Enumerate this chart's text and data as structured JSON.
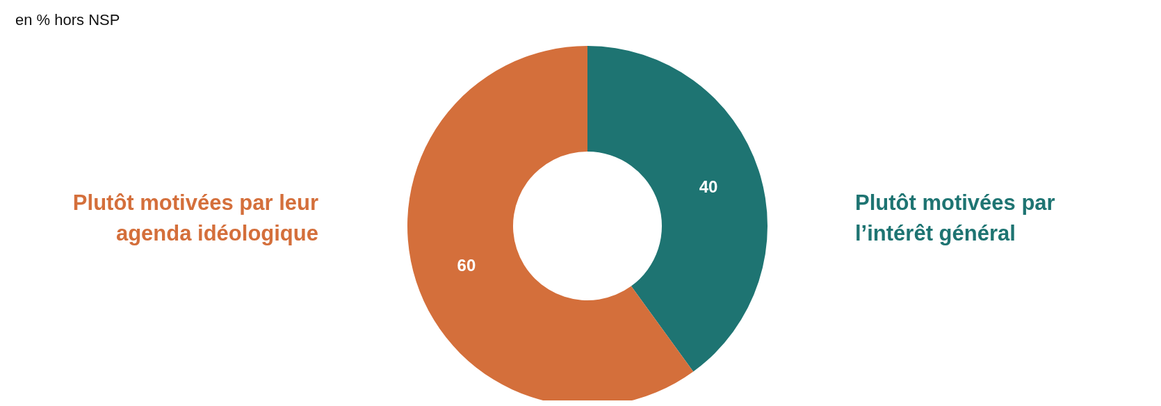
{
  "chart_data": {
    "type": "donut",
    "subtitle": "en % hors NSP",
    "categories": [
      "Plutôt motivées par l’intérêt général",
      "Plutôt motivées par leur agenda idéologique"
    ],
    "values": [
      40,
      60
    ],
    "colors": [
      "#1e7472",
      "#d46f3b"
    ],
    "data_labels": true
  }
}
